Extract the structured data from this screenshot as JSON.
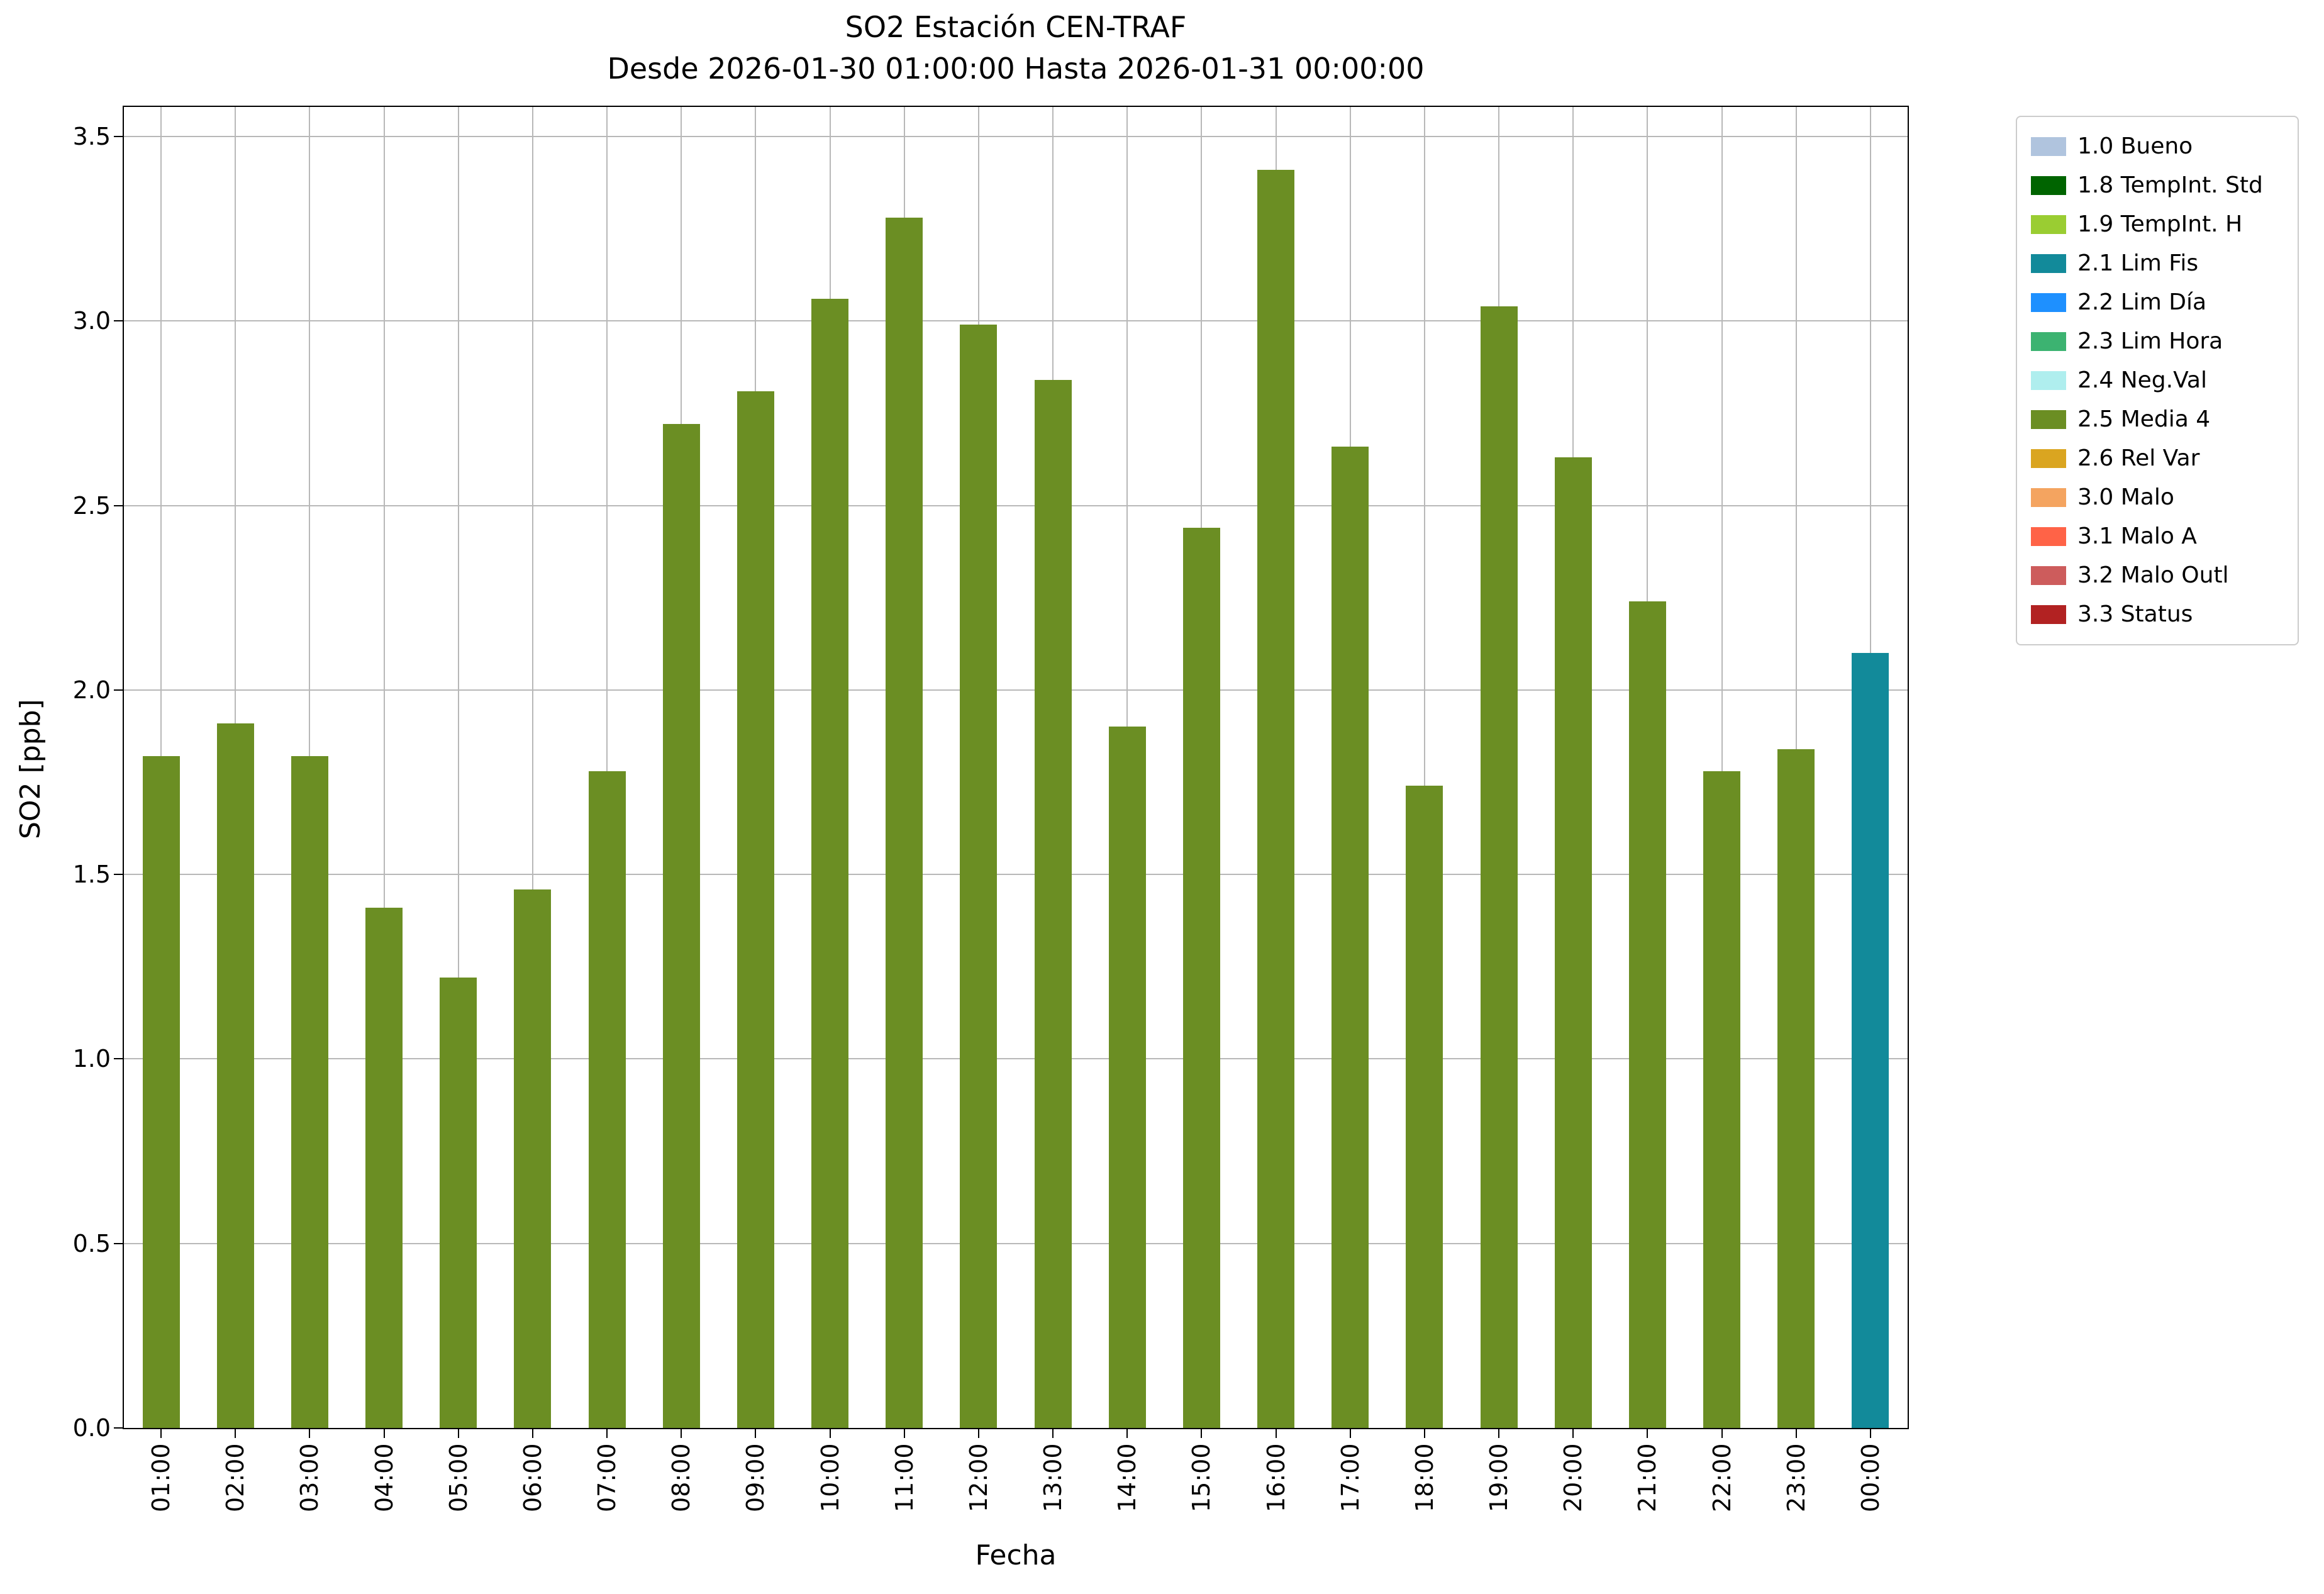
{
  "chart_data": {
    "type": "bar",
    "title": "SO2 Estación CEN-TRAF",
    "subtitle": "Desde 2026-01-30 01:00:00 Hasta 2026-01-31 00:00:00",
    "xlabel": "Fecha",
    "ylabel": "SO2 [ppb]",
    "ylim": [
      0,
      3.58
    ],
    "yticks": [
      0,
      0.5,
      1,
      1.5,
      2,
      2.5,
      3,
      3.5
    ],
    "grid": true,
    "categories": [
      "01:00",
      "02:00",
      "03:00",
      "04:00",
      "05:00",
      "06:00",
      "07:00",
      "08:00",
      "09:00",
      "10:00",
      "11:00",
      "12:00",
      "13:00",
      "14:00",
      "15:00",
      "16:00",
      "17:00",
      "18:00",
      "19:00",
      "20:00",
      "21:00",
      "22:00",
      "23:00",
      "00:00"
    ],
    "values": [
      1.82,
      1.91,
      1.82,
      1.41,
      1.22,
      1.46,
      1.78,
      2.72,
      2.81,
      3.06,
      3.28,
      2.99,
      2.84,
      1.9,
      2.44,
      3.41,
      2.66,
      1.74,
      3.04,
      2.63,
      2.24,
      1.78,
      1.84,
      2.1
    ],
    "bar_status": [
      "2.5 Media 4",
      "2.5 Media 4",
      "2.5 Media 4",
      "2.5 Media 4",
      "2.5 Media 4",
      "2.5 Media 4",
      "2.5 Media 4",
      "2.5 Media 4",
      "2.5 Media 4",
      "2.5 Media 4",
      "2.5 Media 4",
      "2.5 Media 4",
      "2.5 Media 4",
      "2.5 Media 4",
      "2.5 Media 4",
      "2.5 Media 4",
      "2.5 Media 4",
      "2.5 Media 4",
      "2.5 Media 4",
      "2.5 Media 4",
      "2.5 Media 4",
      "2.5 Media 4",
      "2.5 Media 4",
      "2.1 Lim Fis"
    ],
    "legend": {
      "position": "upper right, outside axes",
      "entries": [
        {
          "label": "1.0 Bueno",
          "color": "#b0c4de"
        },
        {
          "label": "1.8 TempInt. Std",
          "color": "#006400"
        },
        {
          "label": "1.9 TempInt. H",
          "color": "#9acd32"
        },
        {
          "label": "2.1 Lim Fis",
          "color": "#128a9a"
        },
        {
          "label": "2.2 Lim Día",
          "color": "#1e90ff"
        },
        {
          "label": "2.3 Lim Hora",
          "color": "#3cb371"
        },
        {
          "label": "2.4 Neg.Val",
          "color": "#afeeee"
        },
        {
          "label": "2.5 Media 4",
          "color": "#6b8e23"
        },
        {
          "label": "2.6 Rel Var",
          "color": "#daa520"
        },
        {
          "label": "3.0 Malo",
          "color": "#f4a460"
        },
        {
          "label": "3.1 Malo A",
          "color": "#ff6347"
        },
        {
          "label": "3.2 Malo Outl",
          "color": "#cd5c5c"
        },
        {
          "label": "3.3 Status",
          "color": "#b22222"
        }
      ]
    }
  }
}
